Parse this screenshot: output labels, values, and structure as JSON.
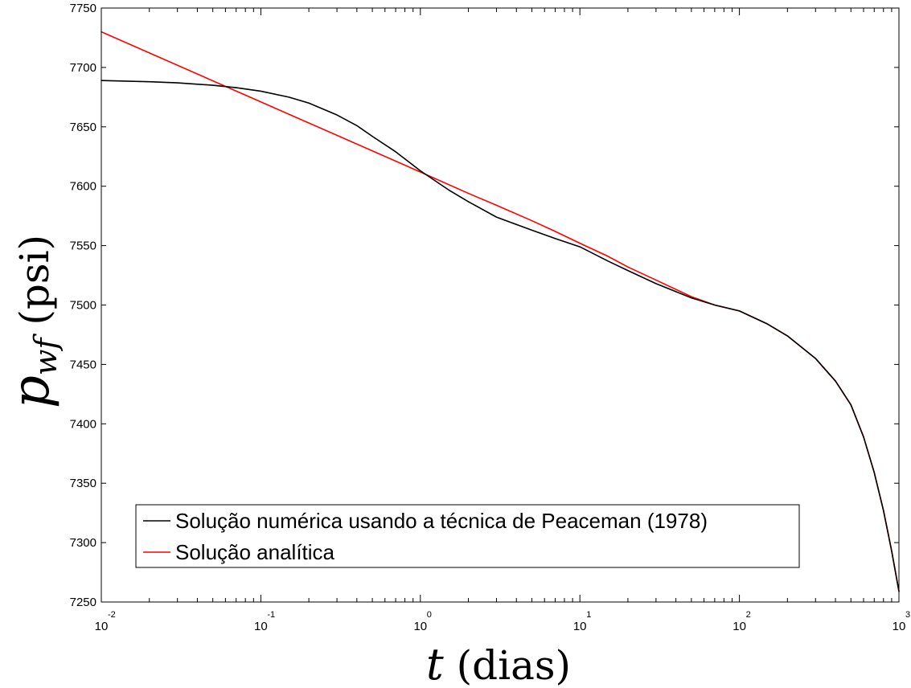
{
  "chart_data": {
    "type": "line",
    "title": "",
    "xlabel": {
      "var": "t",
      "unit": "(dias)"
    },
    "ylabel": {
      "var": "p",
      "sub": "wf",
      "unit": "(psi)"
    },
    "xscale": "log",
    "xlim": [
      0.01,
      1000
    ],
    "ylim": [
      7250,
      7750
    ],
    "yticks": [
      7250,
      7300,
      7350,
      7400,
      7450,
      7500,
      7550,
      7600,
      7650,
      7700,
      7750
    ],
    "yticklabels": [
      "7250",
      "7300",
      "7350",
      "7400",
      "7450",
      "7500",
      "7550",
      "7600",
      "7650",
      "7700",
      "7750"
    ],
    "xticks": [
      {
        "value": 0.01,
        "base": "10",
        "exp": "-2"
      },
      {
        "value": 0.1,
        "base": "10",
        "exp": "-1"
      },
      {
        "value": 1,
        "base": "10",
        "exp": "0"
      },
      {
        "value": 10,
        "base": "10",
        "exp": "1"
      },
      {
        "value": 100,
        "base": "10",
        "exp": "2"
      },
      {
        "value": 1000,
        "base": "10",
        "exp": "3"
      }
    ],
    "grid": false,
    "legend_position": "bottom-left",
    "series": [
      {
        "name": "Solução numérica usando a técnica de Peaceman (1978)",
        "color": "#000000",
        "x": [
          0.01,
          0.02,
          0.03,
          0.05,
          0.07,
          0.1,
          0.15,
          0.2,
          0.3,
          0.4,
          0.5,
          0.7,
          1,
          1.5,
          2,
          3,
          5,
          7,
          10,
          15,
          20,
          30,
          50,
          70,
          100,
          150,
          200,
          300,
          400,
          500,
          600,
          700,
          800,
          900,
          1000
        ],
        "y": [
          7689,
          7688,
          7687,
          7685,
          7683,
          7680,
          7675,
          7670,
          7660,
          7651,
          7642,
          7629,
          7613,
          7597,
          7587,
          7574,
          7563,
          7556,
          7549,
          7537,
          7529,
          7518,
          7506,
          7500,
          7495,
          7484,
          7474,
          7455,
          7436,
          7416,
          7389,
          7359,
          7327,
          7293,
          7259
        ]
      },
      {
        "name": "Solução analítica",
        "color": "#ff0000",
        "x": [
          0.01,
          0.1,
          1,
          2,
          3,
          5,
          7,
          10,
          15,
          20,
          30,
          50,
          70,
          100,
          150,
          200,
          300,
          400,
          500,
          600,
          700,
          800,
          900,
          1000
        ],
        "y": [
          7730,
          7671,
          7612,
          7594,
          7584,
          7571,
          7562,
          7552,
          7541,
          7532,
          7521,
          7507,
          7500,
          7495,
          7484,
          7474,
          7455,
          7436,
          7416,
          7389,
          7359,
          7327,
          7293,
          7259
        ]
      }
    ]
  }
}
